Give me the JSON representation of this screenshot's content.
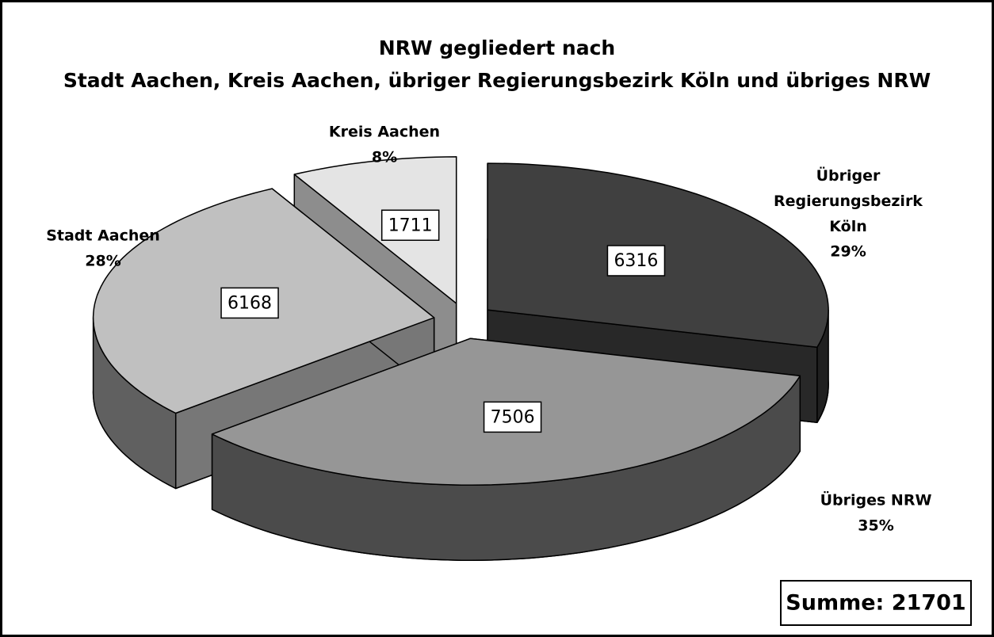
{
  "chart_data": {
    "type": "pie3d",
    "title": "NRW gegliedert nach",
    "subtitle": "Stadt Aachen, Kreis Aachen, übriger Regierungsbezirk Köln und übriges NRW",
    "categories": [
      "Übriger Regierungsbezirk Köln",
      "Übriges NRW",
      "Stadt Aachen",
      "Kreis Aachen"
    ],
    "values": [
      6316,
      7506,
      6168,
      1711
    ],
    "percent_labels": [
      "29%",
      "35%",
      "28%",
      "8%"
    ],
    "colors": [
      "#404040",
      "#969696",
      "#c0c0c0",
      "#e4e4e4"
    ],
    "annotation": "Summe: 21701"
  }
}
